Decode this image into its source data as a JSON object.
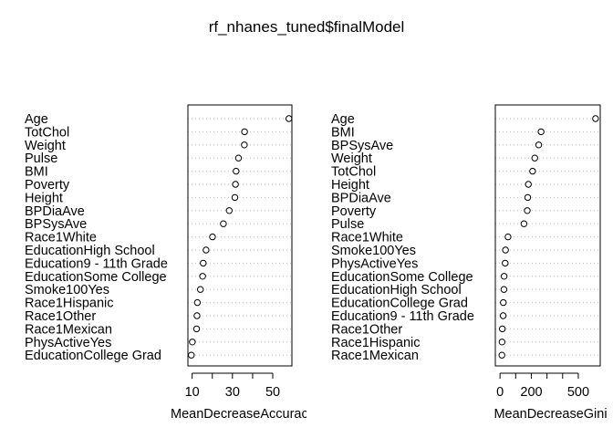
{
  "chart_data": {
    "title": "rf_nhanes_tuned$finalModel",
    "type": "dotchart",
    "panels": [
      {
        "xlabel": "MeanDecreaseAccuracy",
        "xlim": [
          7.9,
          59.5
        ],
        "ticks": [
          10,
          30,
          50
        ],
        "tick_labels": [
          "10",
          "30",
          "50"
        ],
        "grid": "dotted-horizontal",
        "items": [
          {
            "label": "Age",
            "value": 58
          },
          {
            "label": "TotChol",
            "value": 36
          },
          {
            "label": "Weight",
            "value": 35.9
          },
          {
            "label": "Pulse",
            "value": 33
          },
          {
            "label": "BMI",
            "value": 31.8
          },
          {
            "label": "Poverty",
            "value": 31.5
          },
          {
            "label": "Height",
            "value": 31.2
          },
          {
            "label": "BPDiaAve",
            "value": 28.4
          },
          {
            "label": "BPSysAve",
            "value": 25.5
          },
          {
            "label": "Race1White",
            "value": 20.1
          },
          {
            "label": "EducationHigh School",
            "value": 16.9
          },
          {
            "label": "Education9 - 11th Grade",
            "value": 15.5
          },
          {
            "label": "EducationSome College",
            "value": 15.2
          },
          {
            "label": "Smoke100Yes",
            "value": 14.1
          },
          {
            "label": "Race1Hispanic",
            "value": 12.6
          },
          {
            "label": "Race1Other",
            "value": 12.4
          },
          {
            "label": "Race1Mexican",
            "value": 12.2
          },
          {
            "label": "PhysActiveYes",
            "value": 10.1
          },
          {
            "label": "EducationCollege Grad",
            "value": 9.6
          }
        ]
      },
      {
        "xlabel": "MeanDecreaseGini",
        "xlim": [
          -30,
          640
        ],
        "ticks": [
          0,
          200,
          500
        ],
        "tick_labels": [
          "0",
          "200",
          "500"
        ],
        "grid": "dotted-horizontal",
        "items": [
          {
            "label": "Age",
            "value": 610
          },
          {
            "label": "BMI",
            "value": 262
          },
          {
            "label": "BPSysAve",
            "value": 247
          },
          {
            "label": "Weight",
            "value": 222
          },
          {
            "label": "TotChol",
            "value": 208
          },
          {
            "label": "Height",
            "value": 181
          },
          {
            "label": "BPDiaAve",
            "value": 177
          },
          {
            "label": "Poverty",
            "value": 174
          },
          {
            "label": "Pulse",
            "value": 153
          },
          {
            "label": "Race1White",
            "value": 51
          },
          {
            "label": "Smoke100Yes",
            "value": 35
          },
          {
            "label": "PhysActiveYes",
            "value": 33
          },
          {
            "label": "EducationSome College",
            "value": 26
          },
          {
            "label": "EducationHigh School",
            "value": 25
          },
          {
            "label": "EducationCollege Grad",
            "value": 21
          },
          {
            "label": "Education9 - 11th Grade",
            "value": 20
          },
          {
            "label": "Race1Other",
            "value": 15
          },
          {
            "label": "Race1Hispanic",
            "value": 13
          },
          {
            "label": "Race1Mexican",
            "value": 12
          }
        ]
      }
    ]
  }
}
